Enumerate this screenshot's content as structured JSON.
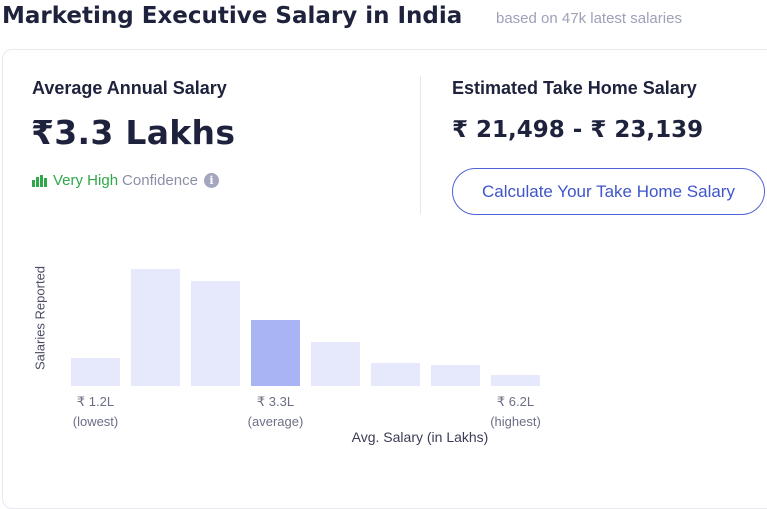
{
  "header": {
    "title": "Marketing Executive Salary in India",
    "subtitle": "based on 47k latest salaries"
  },
  "average": {
    "label": "Average Annual Salary",
    "value": "₹3.3 Lakhs",
    "confidence_level": "Very High",
    "confidence_word": "Confidence",
    "info_icon": "info-icon",
    "bars_icon": "confidence-bars-icon"
  },
  "take_home": {
    "label": "Estimated Take Home Salary",
    "value": "₹ 21,498 - ₹ 23,139",
    "button_label": "Calculate Your Take Home Salary"
  },
  "colors": {
    "accent": "#4d63d6",
    "bar": "#e6e9fb",
    "bar_highlight": "#a9b4f5",
    "confidence": "#2ea84a"
  },
  "chart_data": {
    "type": "bar",
    "ylabel": "Salaries Reported",
    "xlabel": "Avg. Salary (in Lakhs)",
    "values": [
      24,
      100,
      90,
      56,
      38,
      20,
      18,
      9
    ],
    "highlight_index": 3,
    "ticks": [
      {
        "index": 0,
        "value": "₹ 1.2L",
        "note": "(lowest)"
      },
      {
        "index": 3,
        "value": "₹ 3.3L",
        "note": "(average)"
      },
      {
        "index": 7,
        "value": "₹ 6.2L",
        "note": "(highest)"
      }
    ]
  }
}
